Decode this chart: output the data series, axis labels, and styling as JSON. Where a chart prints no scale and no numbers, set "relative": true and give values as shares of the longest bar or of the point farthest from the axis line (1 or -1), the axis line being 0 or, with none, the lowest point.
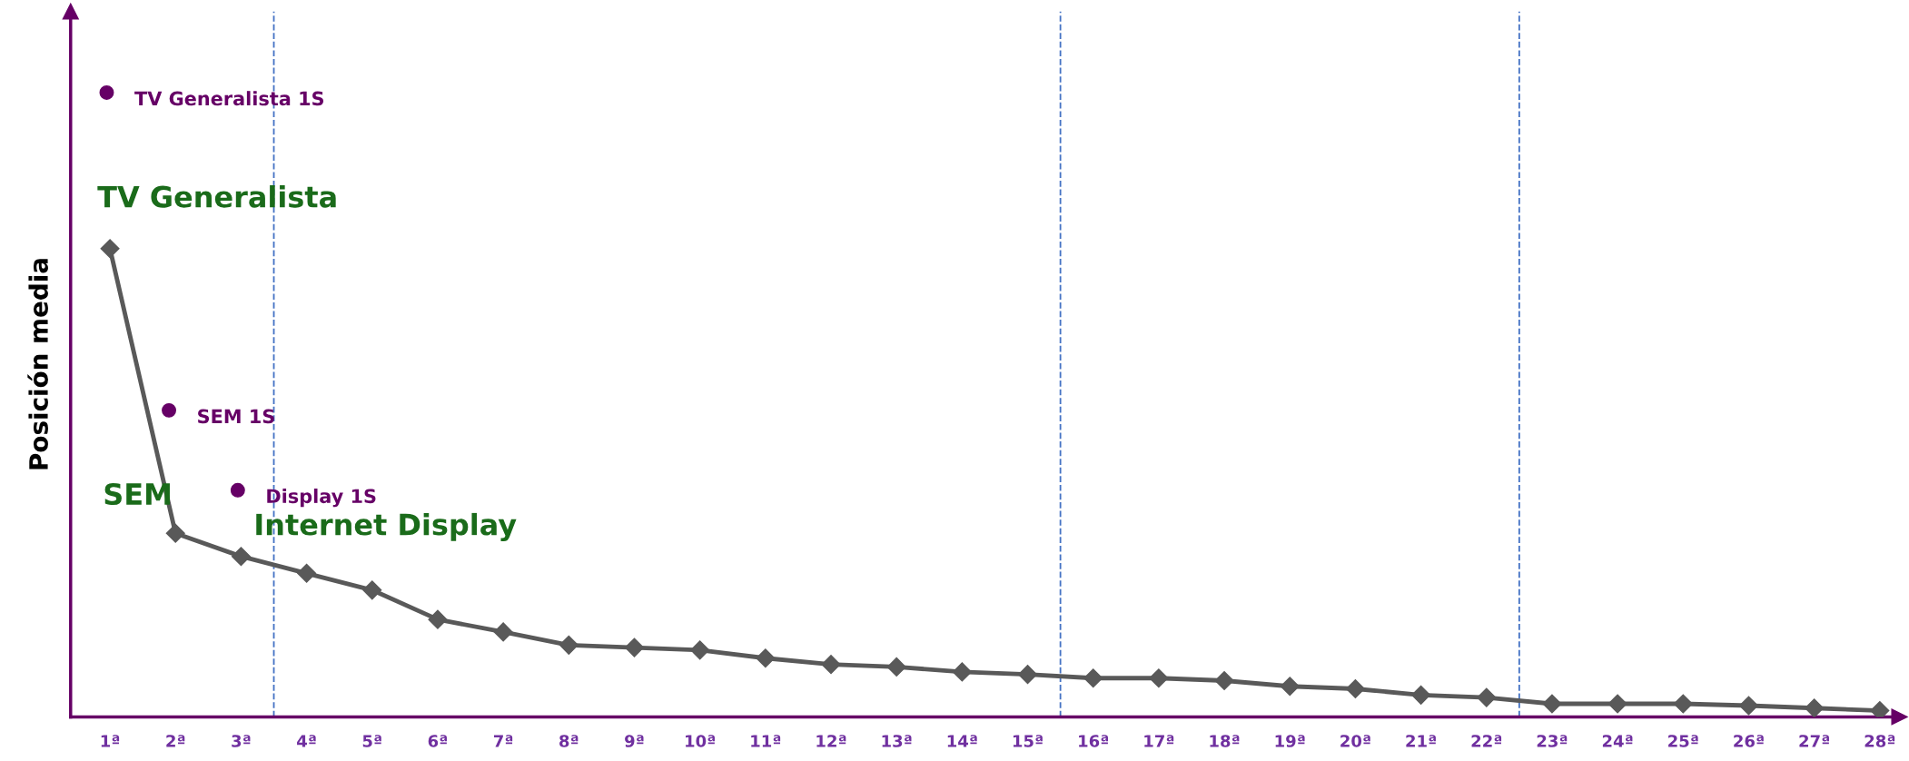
{
  "chart_data": {
    "type": "line",
    "ylabel": "Posición media",
    "relative": true,
    "x": [
      1,
      2,
      3,
      4,
      5,
      6,
      7,
      8,
      9,
      10,
      11,
      12,
      13,
      14,
      15,
      16,
      17,
      18,
      19,
      20,
      21,
      22,
      23,
      24,
      25,
      26,
      27,
      28
    ],
    "xlim": [
      0.4,
      28.3
    ],
    "xticks": [
      {
        "value": 1,
        "label": "1ª"
      },
      {
        "value": 2,
        "label": "2ª"
      },
      {
        "value": 3,
        "label": "3ª"
      },
      {
        "value": 4,
        "label": "4ª"
      },
      {
        "value": 5,
        "label": "5ª"
      },
      {
        "value": 6,
        "label": "6ª"
      },
      {
        "value": 7,
        "label": "7ª"
      },
      {
        "value": 8,
        "label": "8ª"
      },
      {
        "value": 9,
        "label": "9ª"
      },
      {
        "value": 10,
        "label": "10ª"
      },
      {
        "value": 11,
        "label": "11ª"
      },
      {
        "value": 12,
        "label": "12ª"
      },
      {
        "value": 13,
        "label": "13ª"
      },
      {
        "value": 14,
        "label": "14ª"
      },
      {
        "value": 15,
        "label": "15ª"
      },
      {
        "value": 16,
        "label": "16ª"
      },
      {
        "value": 17,
        "label": "17ª"
      },
      {
        "value": 18,
        "label": "18ª"
      },
      {
        "value": 19,
        "label": "19ª"
      },
      {
        "value": 20,
        "label": "20ª"
      },
      {
        "value": 21,
        "label": "21ª"
      },
      {
        "value": 22,
        "label": "22ª"
      },
      {
        "value": 23,
        "label": "23ª"
      },
      {
        "value": 24,
        "label": "24ª"
      },
      {
        "value": 25,
        "label": "25ª"
      },
      {
        "value": 26,
        "label": "26ª"
      },
      {
        "value": 27,
        "label": "27ª"
      },
      {
        "value": 28,
        "label": "28ª"
      }
    ],
    "series": [
      {
        "color": "#595959",
        "marker": "diamond",
        "values": [
          0.75,
          0.294,
          0.257,
          0.23,
          0.203,
          0.156,
          0.136,
          0.115,
          0.111,
          0.107,
          0.094,
          0.084,
          0.08,
          0.072,
          0.068,
          0.062,
          0.062,
          0.058,
          0.049,
          0.045,
          0.035,
          0.031,
          0.021,
          0.021,
          0.021,
          0.018,
          0.014,
          0.01
        ]
      },
      {
        "type": "scatter",
        "name": "TV Generalista 1S",
        "color": "#660066",
        "marker": "circle",
        "x": [
          0.95
        ],
        "values": [
          1.0
        ]
      },
      {
        "type": "scatter",
        "name": "SEM 1S",
        "color": "#660066",
        "marker": "circle",
        "x": [
          1.9
        ],
        "values": [
          0.491
        ]
      },
      {
        "type": "scatter",
        "name": "Display 1S",
        "color": "#660066",
        "marker": "circle",
        "x": [
          2.95
        ],
        "values": [
          0.363
        ]
      }
    ],
    "annotations": [
      {
        "text": "TV Generalista",
        "x": 1,
        "y": 0.75
      },
      {
        "text": "SEM",
        "x": 2,
        "y": 0.294
      },
      {
        "text": "Internet Display",
        "x": 3,
        "y": 0.257
      }
    ],
    "ref_lines": [
      {
        "axis": "x",
        "value": 3.5,
        "color": "#4472c4",
        "line_style": "dashed"
      },
      {
        "axis": "x",
        "value": 15.5,
        "color": "#4472c4",
        "line_style": "dashed"
      },
      {
        "axis": "x",
        "value": 22.5,
        "color": "#4472c4",
        "line_style": "dashed"
      }
    ],
    "grid": false,
    "legend": false
  }
}
